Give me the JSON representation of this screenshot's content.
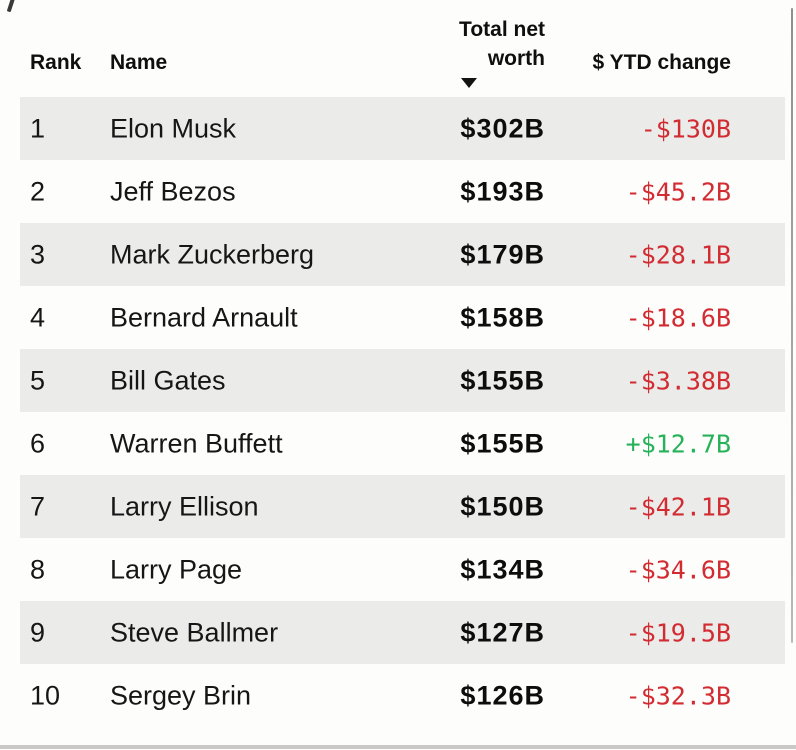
{
  "table": {
    "columns": [
      {
        "id": "rank",
        "label": "Rank"
      },
      {
        "id": "name",
        "label": "Name"
      },
      {
        "id": "net_worth",
        "label": "Total net worth",
        "label_lines": [
          "Total net",
          "worth"
        ]
      },
      {
        "id": "ytd_change",
        "label": "$ YTD change"
      }
    ],
    "sort": {
      "column": "net_worth",
      "direction": "desc"
    },
    "rows": [
      {
        "rank": "1",
        "name": "Elon Musk",
        "net_worth": "$302B",
        "ytd_change": "-$130B"
      },
      {
        "rank": "2",
        "name": "Jeff Bezos",
        "net_worth": "$193B",
        "ytd_change": "-$45.2B"
      },
      {
        "rank": "3",
        "name": "Mark Zuckerberg",
        "net_worth": "$179B",
        "ytd_change": "-$28.1B"
      },
      {
        "rank": "4",
        "name": "Bernard Arnault",
        "net_worth": "$158B",
        "ytd_change": "-$18.6B"
      },
      {
        "rank": "5",
        "name": "Bill Gates",
        "net_worth": "$155B",
        "ytd_change": "-$3.38B"
      },
      {
        "rank": "6",
        "name": "Warren Buffett",
        "net_worth": "$155B",
        "ytd_change": "+$12.7B"
      },
      {
        "rank": "7",
        "name": "Larry Ellison",
        "net_worth": "$150B",
        "ytd_change": "-$42.1B"
      },
      {
        "rank": "8",
        "name": "Larry Page",
        "net_worth": "$134B",
        "ytd_change": "-$34.6B"
      },
      {
        "rank": "9",
        "name": "Steve Ballmer",
        "net_worth": "$127B",
        "ytd_change": "-$19.5B"
      },
      {
        "rank": "10",
        "name": "Sergey Brin",
        "net_worth": "$126B",
        "ytd_change": "-$32.3B"
      }
    ]
  },
  "colors": {
    "negative_change": "#d22b31",
    "positive_change": "#27b259",
    "row_stripe": "#ebebea",
    "header_text": "#0f0f0f",
    "body_text": "#161616"
  }
}
